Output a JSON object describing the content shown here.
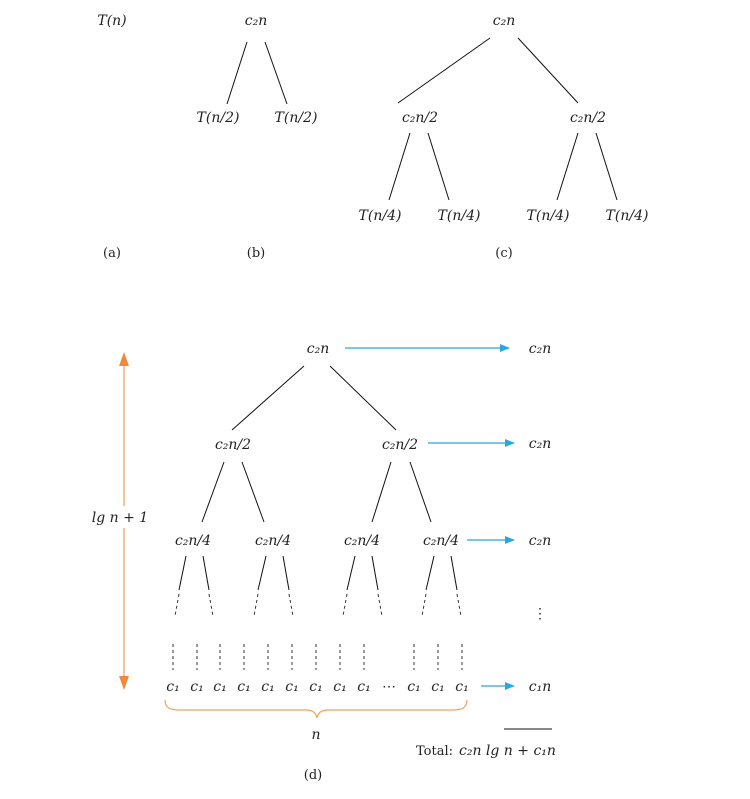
{
  "panel_a": {
    "label": "(a)",
    "root": "T(n)"
  },
  "panel_b": {
    "label": "(b)",
    "root": "c₂n",
    "children": [
      "T(n/2)",
      "T(n/2)"
    ]
  },
  "panel_c": {
    "label": "(c)",
    "root": "c₂n",
    "level1": [
      "c₂n/2",
      "c₂n/2"
    ],
    "level2": [
      "T(n/4)",
      "T(n/4)",
      "T(n/4)",
      "T(n/4)"
    ]
  },
  "panel_d": {
    "label": "(d)",
    "root": "c₂n",
    "level1": [
      "c₂n/2",
      "c₂n/2"
    ],
    "level2": [
      "c₂n/4",
      "c₂n/4",
      "c₂n/4",
      "c₂n/4"
    ],
    "leaves": [
      "c₁",
      "c₁",
      "c₁",
      "c₁",
      "c₁",
      "c₁",
      "c₁",
      "c₁",
      "c₁",
      "c₁",
      "c₁",
      "c₁"
    ],
    "leaves_ellipsis": "⋯",
    "level_costs": [
      "c₂n",
      "c₂n",
      "c₂n",
      "c₁n"
    ],
    "vertical_ellipsis": "⋮",
    "height_label": "lg n + 1",
    "leaf_count_label": "n",
    "total_label": "Total:",
    "total_value": "c₂n lg n + c₁n",
    "colors": {
      "cost_arrow": "#29a8e0",
      "height_arrow": "#f0883e",
      "brace": "#f5a05a"
    }
  }
}
